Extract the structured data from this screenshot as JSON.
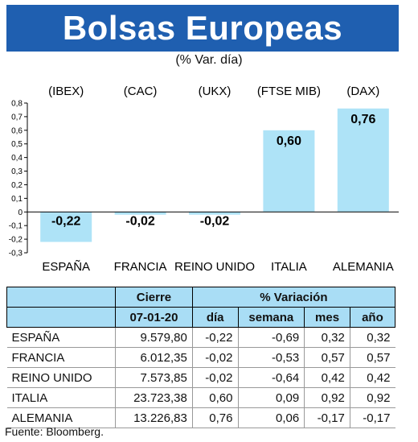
{
  "header": {
    "title": "Bolsas Europeas",
    "subtitle": "(% Var. día)"
  },
  "chart_data": {
    "type": "bar",
    "categories": [
      "ESPAÑA",
      "FRANCIA",
      "REINO UNIDO",
      "ITALIA",
      "ALEMANIA"
    ],
    "codes": [
      "(IBEX)",
      "(CAC)",
      "(UKX)",
      "(FTSE MIB)",
      "(DAX)"
    ],
    "values": [
      -0.22,
      -0.02,
      -0.02,
      0.6,
      0.76
    ],
    "value_labels": [
      "-0,22",
      "-0,02",
      "-0,02",
      "0,60",
      "0,76"
    ],
    "ylim": [
      -0.3,
      0.8
    ],
    "yticks": [
      "0,8",
      "0,7",
      "0,6",
      "0,5",
      "0,4",
      "0,3",
      "0,2",
      "0,1",
      "0",
      "-0,1",
      "-0,2",
      "-0,3"
    ],
    "ytick_values": [
      0.8,
      0.7,
      0.6,
      0.5,
      0.4,
      0.3,
      0.2,
      0.1,
      0,
      -0.1,
      -0.2,
      -0.3
    ],
    "bar_color": "#aee3f7",
    "grid": false
  },
  "table": {
    "group_headers": {
      "cierre": "Cierre",
      "variacion": "% Variación"
    },
    "columns": [
      "07-01-20",
      "día",
      "semana",
      "mes",
      "año"
    ],
    "rows": [
      {
        "name": "ESPAÑA",
        "cierre": "9.579,80",
        "dia": "-0,22",
        "semana": "-0,69",
        "mes": "0,32",
        "ano": "0,32"
      },
      {
        "name": "FRANCIA",
        "cierre": "6.012,35",
        "dia": "-0,02",
        "semana": "-0,53",
        "mes": "0,57",
        "ano": "0,57"
      },
      {
        "name": "REINO UNIDO",
        "cierre": "7.573,85",
        "dia": "-0,02",
        "semana": "-0,64",
        "mes": "0,42",
        "ano": "0,42"
      },
      {
        "name": "ITALIA",
        "cierre": "23.723,38",
        "dia": "0,60",
        "semana": "0,09",
        "mes": "0,92",
        "ano": "0,92"
      },
      {
        "name": "ALEMANIA",
        "cierre": "13.226,83",
        "dia": "0,76",
        "semana": "0,06",
        "mes": "-0,17",
        "ano": "-0,17"
      }
    ]
  },
  "source": "Fuente: Bloomberg."
}
